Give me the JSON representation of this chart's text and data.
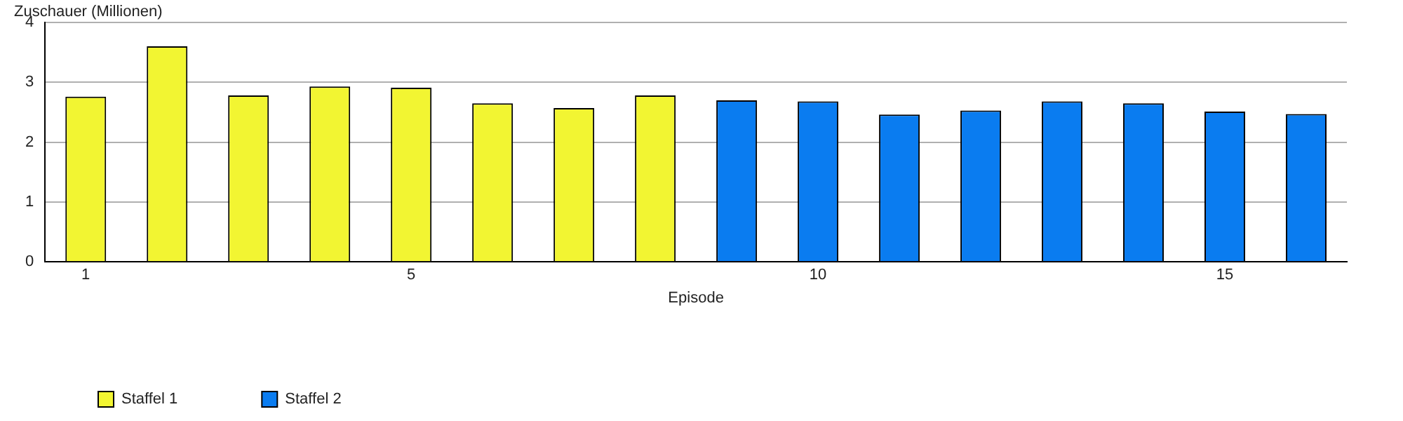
{
  "chart_data": {
    "type": "bar",
    "xlabel": "Episode",
    "ylabel": "Zuschauer (Millionen)",
    "categories": [
      "1",
      null,
      null,
      null,
      "5",
      null,
      null,
      null,
      null,
      "10",
      null,
      null,
      null,
      null,
      "15",
      null
    ],
    "series": [
      {
        "name": "Staffel 1",
        "color": "#f2f532",
        "values": [
          2.76,
          3.6,
          2.78,
          2.93,
          2.91,
          2.65,
          2.57,
          2.78,
          null,
          null,
          null,
          null,
          null,
          null,
          null,
          null
        ]
      },
      {
        "name": "Staffel 2",
        "color": "#0a7cf0",
        "values": [
          null,
          null,
          null,
          null,
          null,
          null,
          null,
          null,
          2.7,
          2.68,
          2.46,
          2.53,
          2.68,
          2.65,
          2.51,
          2.47
        ]
      }
    ],
    "ylim": [
      0,
      4
    ],
    "yticks": [
      0,
      1,
      2,
      3,
      4
    ],
    "grid": "y",
    "legend": "bottom left"
  }
}
